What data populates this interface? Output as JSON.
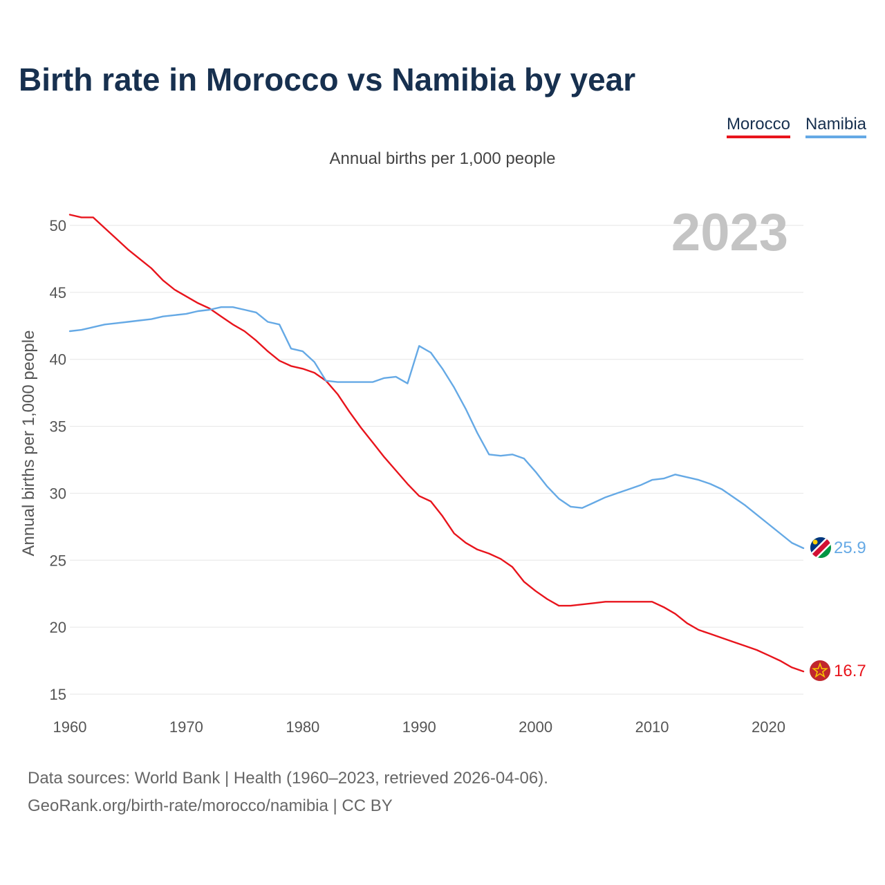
{
  "title": "Birth rate in Morocco vs Namibia by year",
  "subtitle": "Annual births per 1,000 people",
  "legend": [
    {
      "label": "Morocco",
      "color": "#e8141c"
    },
    {
      "label": "Namibia",
      "color": "#65a9e5"
    }
  ],
  "year_badge": "2023",
  "footer": {
    "line1": "Data sources: World Bank | Health (1960–2023, retrieved 2026-04-06).",
    "line2": "GeoRank.org/birth-rate/morocco/namibia | CC BY"
  },
  "end_labels": {
    "morocco": "16.7",
    "namibia": "25.9"
  },
  "chart_data": {
    "type": "line",
    "title": "Birth rate in Morocco vs Namibia by year",
    "subtitle": "Annual births per 1,000 people",
    "xlabel": "",
    "ylabel": "Annual births per 1,000 people",
    "xlim": [
      1960,
      2023
    ],
    "ylim": [
      15,
      51
    ],
    "xticks": [
      1960,
      1970,
      1980,
      1990,
      2000,
      2010,
      2020
    ],
    "yticks": [
      15,
      20,
      25,
      30,
      35,
      40,
      45,
      50
    ],
    "grid": true,
    "legend_position": "top-right",
    "x": [
      1960,
      1961,
      1962,
      1963,
      1964,
      1965,
      1966,
      1967,
      1968,
      1969,
      1970,
      1971,
      1972,
      1973,
      1974,
      1975,
      1976,
      1977,
      1978,
      1979,
      1980,
      1981,
      1982,
      1983,
      1984,
      1985,
      1986,
      1987,
      1988,
      1989,
      1990,
      1991,
      1992,
      1993,
      1994,
      1995,
      1996,
      1997,
      1998,
      1999,
      2000,
      2001,
      2002,
      2003,
      2004,
      2005,
      2006,
      2007,
      2008,
      2009,
      2010,
      2011,
      2012,
      2013,
      2014,
      2015,
      2016,
      2017,
      2018,
      2019,
      2020,
      2021,
      2022,
      2023
    ],
    "series": [
      {
        "name": "Morocco",
        "color": "#e8141c",
        "values": [
          50.8,
          50.6,
          50.6,
          49.8,
          49.0,
          48.2,
          47.5,
          46.8,
          45.9,
          45.2,
          44.7,
          44.2,
          43.8,
          43.2,
          42.6,
          42.1,
          41.4,
          40.6,
          39.9,
          39.5,
          39.3,
          39.0,
          38.4,
          37.4,
          36.1,
          34.9,
          33.8,
          32.7,
          31.7,
          30.7,
          29.8,
          29.4,
          28.3,
          27.0,
          26.3,
          25.8,
          25.5,
          25.1,
          24.5,
          23.4,
          22.7,
          22.1,
          21.6,
          21.6,
          21.7,
          21.8,
          21.9,
          21.9,
          21.9,
          21.9,
          21.9,
          21.5,
          21.0,
          20.3,
          19.8,
          19.5,
          19.2,
          18.9,
          18.6,
          18.3,
          17.9,
          17.5,
          17.0,
          16.7
        ]
      },
      {
        "name": "Namibia",
        "color": "#65a9e5",
        "values": [
          42.1,
          42.2,
          42.4,
          42.6,
          42.7,
          42.8,
          42.9,
          43.0,
          43.2,
          43.3,
          43.4,
          43.6,
          43.7,
          43.9,
          43.9,
          43.7,
          43.5,
          42.8,
          42.6,
          40.8,
          40.6,
          39.8,
          38.4,
          38.3,
          38.3,
          38.3,
          38.3,
          38.6,
          38.7,
          38.2,
          41.0,
          40.5,
          39.3,
          37.9,
          36.3,
          34.5,
          32.9,
          32.8,
          32.9,
          32.6,
          31.6,
          30.5,
          29.6,
          29.0,
          28.9,
          29.3,
          29.7,
          30.0,
          30.3,
          30.6,
          31.0,
          31.1,
          31.4,
          31.2,
          31.0,
          30.7,
          30.3,
          29.7,
          29.1,
          28.4,
          27.7,
          27.0,
          26.3,
          25.9
        ]
      }
    ]
  }
}
